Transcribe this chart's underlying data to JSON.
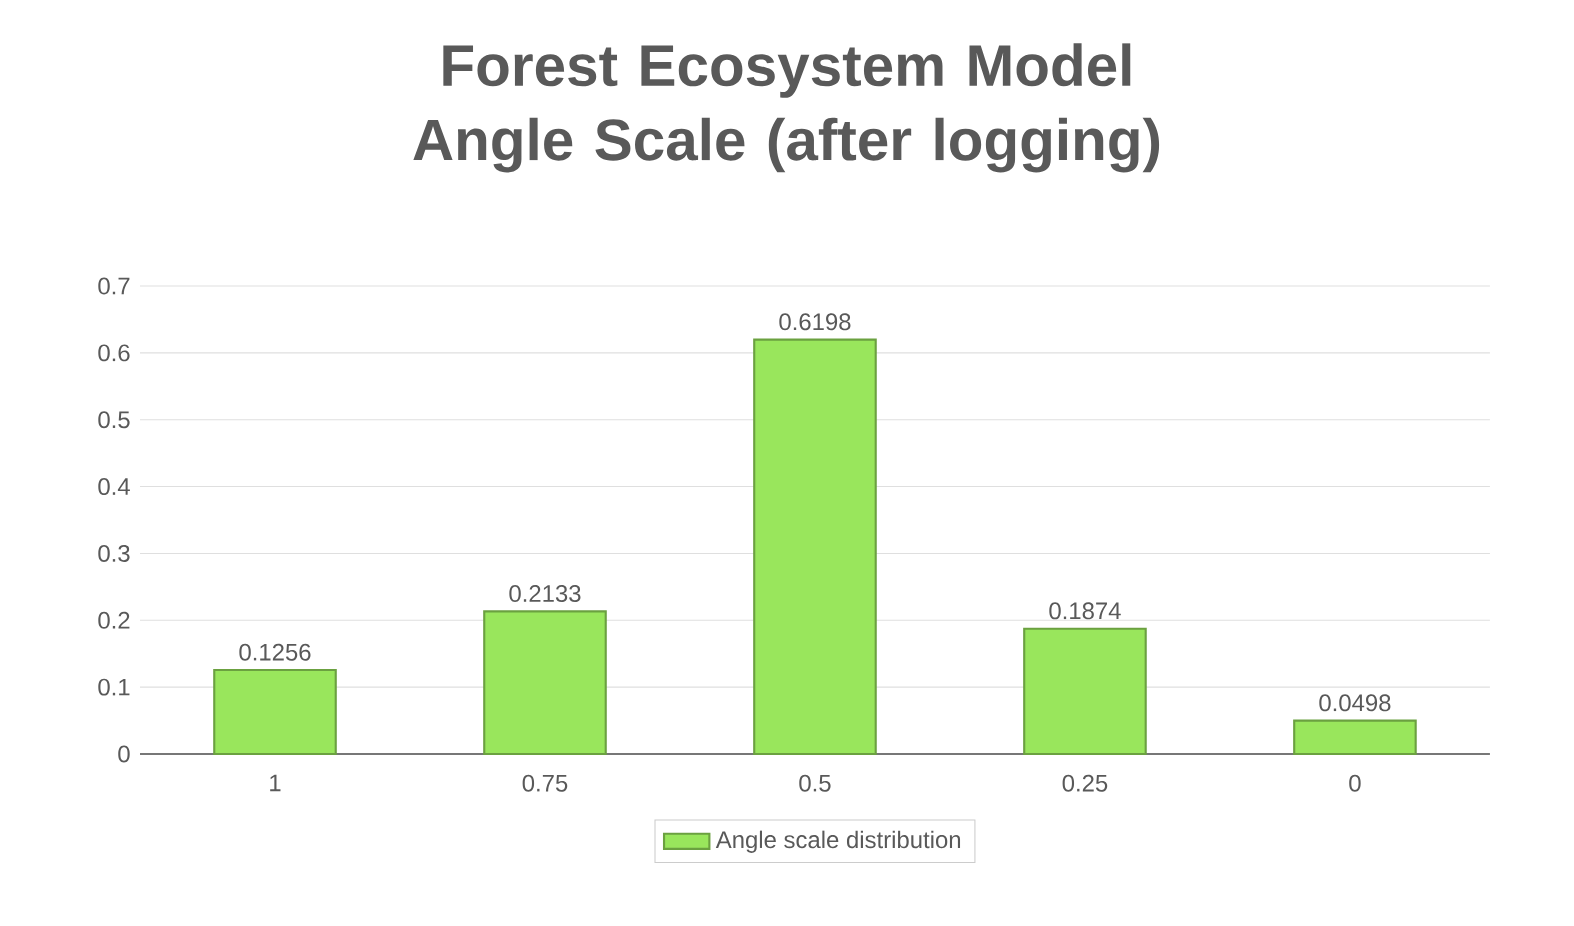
{
  "chart_data": {
    "type": "bar",
    "title": "Forest Ecosystem Model Angle Scale (after logging)",
    "categories": [
      "1",
      "0.75",
      "0.5",
      "0.25",
      "0"
    ],
    "series": [
      {
        "name": "Angle scale distribution",
        "color": "#99e65c",
        "values": [
          0.1256,
          0.2133,
          0.6198,
          0.1874,
          0.0498
        ]
      }
    ],
    "ylim": [
      0,
      0.7
    ],
    "yticks": [
      0,
      0.1,
      0.2,
      0.3,
      0.4,
      0.5,
      0.6,
      0.7
    ],
    "grid": "y",
    "legend": "bottom",
    "data_labels": true
  }
}
